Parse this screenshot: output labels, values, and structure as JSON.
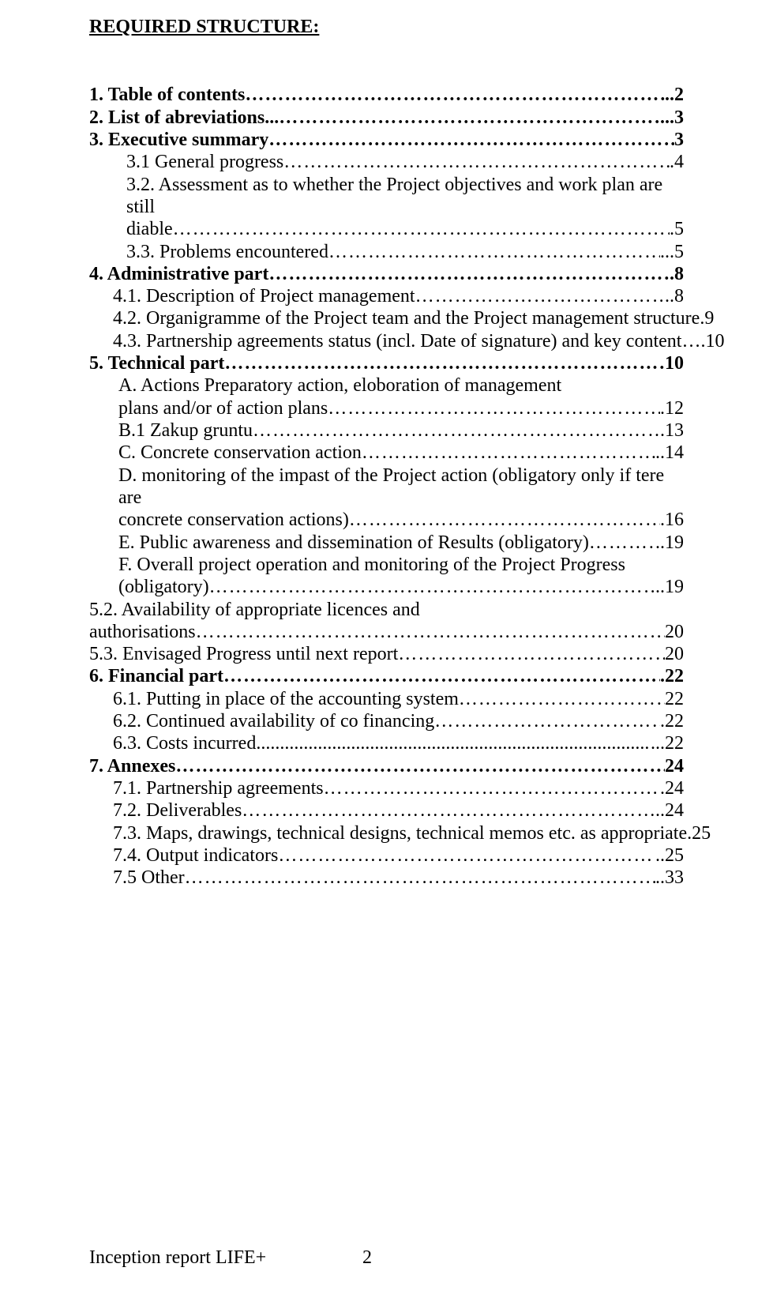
{
  "heading": "REQUIRED STRUCTURE:",
  "toc": [
    {
      "label": "1.      Table of contents",
      "page": "..2",
      "bold": true,
      "cls": ""
    },
    {
      "label": "2. List of abreviations...",
      "page": "...3",
      "bold": true,
      "cls": ""
    },
    {
      "label": "3. Executive summary",
      "page": "3",
      "bold": true,
      "cls": ""
    },
    {
      "label": "3.1 General progress",
      "page": ".4",
      "bold": false,
      "cls": "i1"
    },
    {
      "label": "3.2. Assessment as to whether the Project objectives and work plan are still",
      "wrap": "diable",
      "page": ".5",
      "bold": false,
      "cls": "i1"
    },
    {
      "label": "3.3. Problems encountered",
      "page": "...5",
      "bold": false,
      "cls": "i1"
    },
    {
      "label": "4.      Administrative part",
      "page": ".8",
      "bold": true,
      "cls": ""
    },
    {
      "label": "4.1. Description of Project management",
      "page": "..8",
      "bold": false,
      "cls": "i2"
    },
    {
      "label": "4.2. Organigramme of the Project team and the Project management structure",
      "page": ".9",
      "bold": false,
      "cls": "i2",
      "noleader": true
    },
    {
      "label": "4.3. Partnership agreements status (incl. Date of signature) and key content…",
      "page": ".10",
      "bold": false,
      "cls": "i2",
      "noleader": true
    },
    {
      "label": "5. Technical part",
      "page": "10",
      "bold": true,
      "cls": ""
    },
    {
      "label": "A.  Actions Preparatory action, eloboration of management",
      "wrap": "plans and/or of action plans",
      "page": ".12",
      "bold": false,
      "cls": "i3"
    },
    {
      "label": "B.1 Zakup gruntu",
      "page": ".13",
      "bold": false,
      "cls": "i3"
    },
    {
      "label": "C. Concrete conservation action",
      "page": "..14",
      "bold": false,
      "cls": "i3"
    },
    {
      "label": "D. monitoring of the impast of the Project action (obligatory only if tere are",
      "wrap": "concrete conservation actions)",
      "page": ".16",
      "bold": false,
      "cls": "i3"
    },
    {
      "label": "E. Public awareness and dissemination of Results (obligatory)",
      "page": "..19",
      "bold": false,
      "cls": "i3"
    },
    {
      "label": "F. Overall project operation and monitoring of the Project Progress",
      "wrap": "(obligatory)",
      "page": "..19",
      "bold": false,
      "cls": "i3"
    },
    {
      "label": "5.2. Availability of appropriate licences and",
      "wrap": "authorisations",
      "page": "20",
      "bold": false,
      "cls": ""
    },
    {
      "label": "5.3. Envisaged Progress until next report",
      "page": "20",
      "bold": false,
      "cls": ""
    },
    {
      "label": "6. Financial part",
      "page": ".22",
      "bold": true,
      "cls": ""
    },
    {
      "label": "6.1. Putting in place of the accounting system",
      "page": "22",
      "bold": false,
      "cls": "i2"
    },
    {
      "label": "6.2. Continued availability of co financing",
      "page": ".22",
      "bold": false,
      "cls": "i2"
    },
    {
      "label": "6.3. Costs incurred",
      "page": "...22",
      "bold": false,
      "cls": "i2",
      "dots": true
    },
    {
      "label": "7. Annexes",
      "page": "24",
      "bold": true,
      "cls": ""
    },
    {
      "label": "7.1. Partnership agreements",
      "page": ".24",
      "bold": false,
      "cls": "i2"
    },
    {
      "label": "7.2. Deliverables",
      "page": "..24",
      "bold": false,
      "cls": "i2"
    },
    {
      "label": "7.3. Maps, drawings, technical designs, technical memos etc. as appropriate",
      "page": ".25",
      "bold": false,
      "cls": "i2"
    },
    {
      "label": "7.4. Output indicators",
      "page": "..25",
      "bold": false,
      "cls": "i2"
    },
    {
      "label": "7.5 Other",
      "page": "..33",
      "bold": false,
      "cls": "i2"
    }
  ],
  "footer": "Inception report LIFE+",
  "footer_page": "2"
}
